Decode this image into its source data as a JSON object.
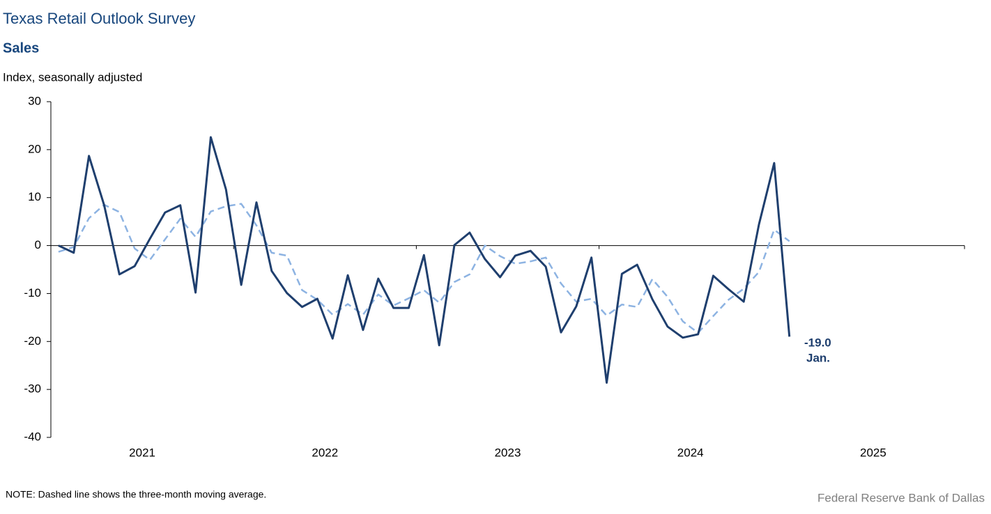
{
  "chart_data": {
    "type": "line",
    "title": "Texas Retail Outlook Survey",
    "subtitle": "Sales",
    "y_label": "Index, seasonally adjusted",
    "categories": [
      null,
      null,
      null,
      null,
      null,
      null,
      null,
      null,
      null,
      null,
      null,
      null,
      null,
      null,
      null,
      null,
      null,
      null,
      null,
      null,
      null,
      null,
      null,
      null,
      null,
      null,
      null,
      null,
      null,
      null,
      null,
      null,
      null,
      null,
      null,
      null,
      null,
      null,
      null,
      null,
      null,
      null,
      null,
      null,
      null,
      null,
      null,
      null,
      null
    ],
    "year_labels": [
      "2021",
      "2022",
      "2023",
      "2024",
      "2025"
    ],
    "series": [
      {
        "color": "#1f3f6e",
        "dash": false,
        "values": [
          0,
          -1.5,
          18.7,
          8.4,
          -6.0,
          -4.3,
          1.4,
          6.9,
          8.4,
          -9.8,
          22.6,
          11.7,
          -8.2,
          9.0,
          -5.3,
          -9.9,
          -12.8,
          -11.1,
          -19.4,
          -6.2,
          -17.6,
          -6.9,
          -13.0,
          -13.0,
          -2.0,
          -20.8,
          0.1,
          2.7,
          -2.8,
          -6.6,
          -2.1,
          -1.1,
          -4.4,
          -18.1,
          -12.7,
          -2.5,
          -28.6,
          -5.9,
          -4.0,
          -11.2,
          -16.9,
          -19.2,
          -18.5,
          -6.3,
          -9.1,
          -11.7,
          4.4,
          17.2,
          -19.0
        ]
      },
      {
        "color": "#8db3e2",
        "dash": true,
        "values": [
          -1.3,
          -0.3,
          5.7,
          8.5,
          7.0,
          -0.6,
          -3.0,
          1.3,
          5.6,
          1.8,
          7.1,
          8.2,
          8.7,
          4.2,
          -1.5,
          -2.1,
          -9.3,
          -11.3,
          -14.4,
          -12.2,
          -14.4,
          -10.2,
          -12.5,
          -11.0,
          -9.3,
          -11.9,
          -7.6,
          -6.0,
          0.0,
          -2.2,
          -3.8,
          -3.3,
          -2.5,
          -7.9,
          -11.7,
          -11.1,
          -14.6,
          -12.3,
          -12.8,
          -7.0,
          -10.7,
          -15.8,
          -18.2,
          -14.7,
          -11.3,
          -9.0,
          -5.5,
          3.3,
          0.9
        ]
      }
    ],
    "ylim": [
      -40,
      30
    ],
    "yticks": [
      -40,
      -30,
      -20,
      -10,
      0,
      10,
      20,
      30
    ],
    "annotations": [
      "-19.0",
      "Jan."
    ],
    "note": "NOTE: Dashed line shows the three-month  moving average.",
    "source": "Federal Reserve Bank of Dallas"
  }
}
